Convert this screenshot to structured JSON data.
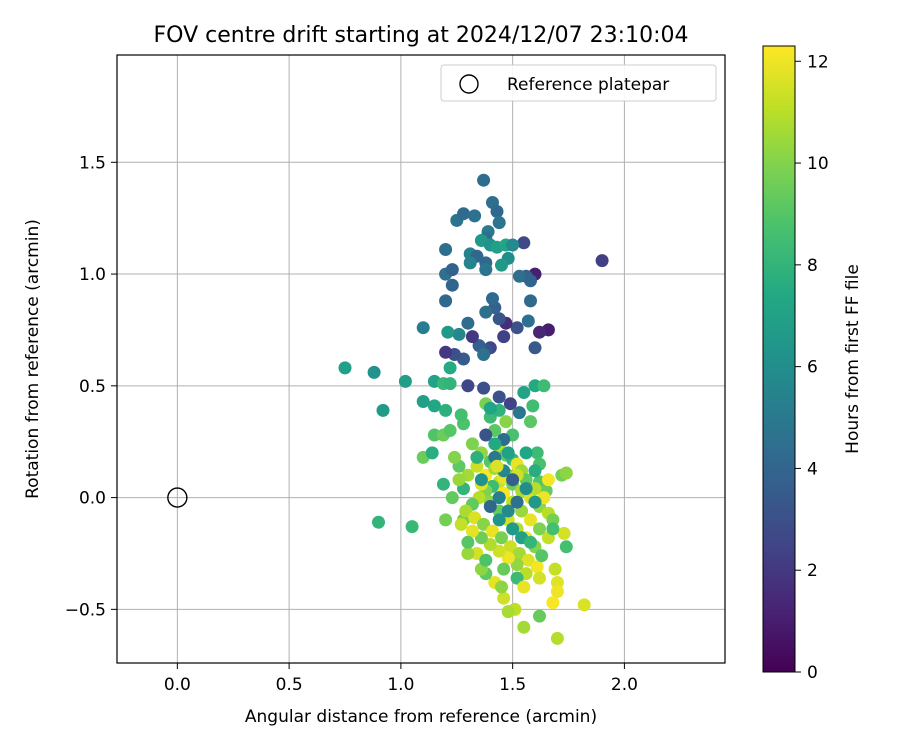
{
  "chart_data": {
    "type": "scatter",
    "title": "FOV centre drift starting at 2024/12/07 23:10:04",
    "xlabel": "Angular distance from reference (arcmin)",
    "ylabel": "Rotation from reference (arcmin)",
    "xlim": [
      -0.27,
      2.45
    ],
    "ylim": [
      -0.74,
      1.98
    ],
    "xticks": [
      0.0,
      0.5,
      1.0,
      1.5,
      2.0
    ],
    "xtick_labels": [
      "0.0",
      "0.5",
      "1.0",
      "1.5",
      "2.0"
    ],
    "yticks": [
      -0.5,
      0.0,
      0.5,
      1.0,
      1.5
    ],
    "ytick_labels": [
      "−0.5",
      "0.0",
      "0.5",
      "1.0",
      "1.5"
    ],
    "grid": true,
    "legend": {
      "placement": "top-right",
      "entries": [
        {
          "label": "Reference platepar",
          "marker": "open-circle",
          "x": 0.0,
          "y": 0.0
        }
      ]
    },
    "colorbar": {
      "label": "Hours from first FF file",
      "range": [
        0,
        12.3
      ],
      "ticks": [
        0,
        2,
        4,
        6,
        8,
        10,
        12
      ],
      "tick_labels": [
        "0",
        "2",
        "4",
        "6",
        "8",
        "10",
        "12"
      ],
      "colormap": "viridis",
      "colormap_stops": [
        "#440154",
        "#482475",
        "#414487",
        "#355f8d",
        "#2a788e",
        "#21918c",
        "#22a884",
        "#44bf70",
        "#7ad151",
        "#bddf26",
        "#fde725"
      ]
    },
    "points": [
      [
        1.9,
        1.06,
        2.3
      ],
      [
        1.66,
        0.75,
        1.0
      ],
      [
        1.62,
        0.74,
        1.3
      ],
      [
        1.6,
        1.0,
        1.1
      ],
      [
        1.55,
        1.14,
        2.7
      ],
      [
        1.6,
        0.67,
        3.4
      ],
      [
        1.58,
        0.88,
        4.3
      ],
      [
        1.56,
        0.99,
        3.9
      ],
      [
        1.53,
        0.99,
        4.5
      ],
      [
        1.58,
        0.97,
        4.0
      ],
      [
        1.57,
        0.79,
        4.6
      ],
      [
        1.52,
        0.76,
        3.1
      ],
      [
        1.47,
        0.78,
        1.6
      ],
      [
        1.46,
        0.72,
        2.4
      ],
      [
        1.44,
        0.8,
        3.3
      ],
      [
        1.42,
        0.85,
        3.8
      ],
      [
        1.41,
        0.89,
        4.2
      ],
      [
        1.38,
        0.83,
        4.5
      ],
      [
        1.4,
        0.67,
        2.6
      ],
      [
        1.38,
        0.66,
        3.2
      ],
      [
        1.35,
        0.68,
        3.7
      ],
      [
        1.37,
        0.64,
        4.6
      ],
      [
        1.32,
        0.72,
        2.0
      ],
      [
        1.3,
        0.78,
        4.4
      ],
      [
        1.28,
        0.62,
        3.5
      ],
      [
        1.24,
        0.64,
        3.0
      ],
      [
        1.2,
        0.65,
        2.0
      ],
      [
        1.2,
        0.88,
        4.2
      ],
      [
        1.23,
        0.95,
        4.0
      ],
      [
        1.2,
        1.0,
        4.6
      ],
      [
        1.23,
        1.02,
        3.9
      ],
      [
        1.2,
        1.11,
        4.5
      ],
      [
        1.25,
        1.24,
        4.7
      ],
      [
        1.28,
        1.27,
        4.3
      ],
      [
        1.33,
        1.26,
        4.6
      ],
      [
        1.37,
        1.42,
        4.4
      ],
      [
        1.41,
        1.32,
        4.5
      ],
      [
        1.43,
        1.28,
        4.2
      ],
      [
        1.44,
        1.23,
        4.8
      ],
      [
        1.39,
        1.19,
        5.0
      ],
      [
        1.38,
        1.16,
        4.4
      ],
      [
        1.36,
        1.15,
        6.6
      ],
      [
        1.31,
        1.09,
        5.4
      ],
      [
        1.34,
        1.08,
        4.1
      ],
      [
        1.38,
        1.05,
        4.2
      ],
      [
        1.4,
        1.13,
        6.2
      ],
      [
        1.43,
        1.12,
        6.9
      ],
      [
        1.47,
        1.13,
        7.2
      ],
      [
        1.5,
        1.13,
        5.8
      ],
      [
        1.48,
        1.07,
        6.0
      ],
      [
        1.45,
        1.04,
        6.6
      ],
      [
        1.38,
        1.02,
        4.8
      ],
      [
        1.31,
        1.05,
        5.4
      ],
      [
        1.26,
        0.73,
        5.7
      ],
      [
        1.21,
        0.74,
        6.6
      ],
      [
        1.1,
        0.76,
        5.2
      ],
      [
        1.3,
        0.5,
        2.6
      ],
      [
        1.37,
        0.49,
        3.0
      ],
      [
        1.44,
        0.45,
        3.1
      ],
      [
        1.49,
        0.42,
        2.5
      ],
      [
        1.53,
        0.38,
        4.8
      ],
      [
        1.55,
        0.47,
        7.1
      ],
      [
        1.6,
        0.5,
        7.4
      ],
      [
        1.64,
        0.5,
        8.4
      ],
      [
        1.59,
        0.41,
        8.5
      ],
      [
        1.58,
        0.34,
        9.1
      ],
      [
        1.61,
        0.2,
        8.4
      ],
      [
        1.62,
        0.15,
        8.7
      ],
      [
        1.62,
        0.07,
        8.9
      ],
      [
        1.65,
        0.03,
        9.4
      ],
      [
        1.72,
        0.1,
        9.7
      ],
      [
        1.74,
        0.11,
        10.2
      ],
      [
        1.73,
        -0.16,
        11.5
      ],
      [
        1.74,
        -0.22,
        8.6
      ],
      [
        1.69,
        -0.32,
        11.2
      ],
      [
        1.7,
        -0.38,
        11.7
      ],
      [
        1.7,
        -0.42,
        12.0
      ],
      [
        1.68,
        -0.47,
        12.2
      ],
      [
        1.82,
        -0.48,
        11.6
      ],
      [
        1.7,
        -0.63,
        10.9
      ],
      [
        1.62,
        -0.53,
        9.4
      ],
      [
        1.55,
        -0.58,
        10.6
      ],
      [
        1.51,
        -0.5,
        11.1
      ],
      [
        1.48,
        -0.51,
        10.7
      ],
      [
        1.46,
        -0.45,
        11.4
      ],
      [
        1.42,
        -0.38,
        11.8
      ],
      [
        1.38,
        -0.34,
        9.2
      ],
      [
        1.36,
        -0.32,
        10.2
      ],
      [
        1.34,
        -0.25,
        11.5
      ],
      [
        1.3,
        -0.25,
        10.4
      ],
      [
        1.28,
        -0.1,
        9.6
      ],
      [
        1.23,
        0.0,
        9.3
      ],
      [
        1.19,
        0.06,
        8.0
      ],
      [
        1.2,
        -0.1,
        9.7
      ],
      [
        1.1,
        0.18,
        9.5
      ],
      [
        1.14,
        0.2,
        7.7
      ],
      [
        1.15,
        0.28,
        8.9
      ],
      [
        1.19,
        0.28,
        9.5
      ],
      [
        1.22,
        0.3,
        9.0
      ],
      [
        1.28,
        0.33,
        8.8
      ],
      [
        1.27,
        0.37,
        8.6
      ],
      [
        1.2,
        0.39,
        7.8
      ],
      [
        1.15,
        0.41,
        7.3
      ],
      [
        1.1,
        0.43,
        6.9
      ],
      [
        1.15,
        0.52,
        7.1
      ],
      [
        1.19,
        0.51,
        8.2
      ],
      [
        1.22,
        0.58,
        7.5
      ],
      [
        1.22,
        0.51,
        8.0
      ],
      [
        1.05,
        -0.13,
        8.2
      ],
      [
        0.9,
        -0.11,
        8.0
      ],
      [
        1.02,
        0.52,
        6.8
      ],
      [
        0.92,
        0.39,
        6.7
      ],
      [
        0.88,
        0.56,
        6.2
      ],
      [
        0.75,
        0.58,
        6.9
      ],
      [
        1.32,
        0.24,
        9.9
      ],
      [
        1.36,
        0.2,
        10.3
      ],
      [
        1.4,
        0.16,
        9.0
      ],
      [
        1.44,
        0.22,
        10.8
      ],
      [
        1.47,
        0.19,
        9.2
      ],
      [
        1.5,
        0.17,
        8.1
      ],
      [
        1.52,
        0.15,
        11.9
      ],
      [
        1.54,
        0.12,
        10.5
      ],
      [
        1.48,
        0.1,
        9.7
      ],
      [
        1.44,
        0.07,
        11.2
      ],
      [
        1.41,
        0.05,
        8.4
      ],
      [
        1.38,
        0.03,
        9.9
      ],
      [
        1.35,
        0.0,
        11.0
      ],
      [
        1.32,
        -0.03,
        9.3
      ],
      [
        1.29,
        -0.06,
        10.7
      ],
      [
        1.33,
        -0.09,
        11.6
      ],
      [
        1.37,
        -0.12,
        10.1
      ],
      [
        1.41,
        -0.15,
        11.9
      ],
      [
        1.45,
        -0.18,
        9.8
      ],
      [
        1.49,
        -0.22,
        11.3
      ],
      [
        1.53,
        -0.25,
        10.6
      ],
      [
        1.57,
        -0.28,
        11.7
      ],
      [
        1.61,
        -0.31,
        12.1
      ],
      [
        1.56,
        -0.34,
        11.0
      ],
      [
        1.52,
        -0.3,
        10.3
      ],
      [
        1.48,
        -0.27,
        12.0
      ],
      [
        1.44,
        -0.24,
        11.4
      ],
      [
        1.4,
        -0.21,
        10.8
      ],
      [
        1.36,
        -0.18,
        9.6
      ],
      [
        1.32,
        -0.15,
        11.8
      ],
      [
        1.46,
        0.02,
        12.2
      ],
      [
        1.5,
        -0.02,
        11.1
      ],
      [
        1.54,
        -0.06,
        10.4
      ],
      [
        1.58,
        -0.1,
        11.9
      ],
      [
        1.62,
        -0.14,
        9.9
      ],
      [
        1.66,
        -0.18,
        11.2
      ],
      [
        1.6,
        -0.22,
        10.0
      ],
      [
        1.56,
        -0.18,
        12.1
      ],
      [
        1.52,
        -0.14,
        10.9
      ],
      [
        1.48,
        -0.1,
        11.5
      ],
      [
        1.44,
        -0.06,
        9.4
      ],
      [
        1.4,
        -0.02,
        10.2
      ],
      [
        1.36,
        0.06,
        11.7
      ],
      [
        1.3,
        0.1,
        10.6
      ],
      [
        1.26,
        0.14,
        9.2
      ],
      [
        1.24,
        0.18,
        10.0
      ],
      [
        1.34,
        0.14,
        11.3
      ],
      [
        1.38,
        0.1,
        12.2
      ],
      [
        1.42,
        0.13,
        10.5
      ],
      [
        1.46,
        0.09,
        11.8
      ],
      [
        1.5,
        0.06,
        9.5
      ],
      [
        1.54,
        0.03,
        10.8
      ],
      [
        1.58,
        0.0,
        11.6
      ],
      [
        1.62,
        -0.04,
        10.3
      ],
      [
        1.66,
        -0.07,
        11.0
      ],
      [
        1.68,
        -0.1,
        9.7
      ],
      [
        1.64,
        0.0,
        12.0
      ],
      [
        1.6,
        0.04,
        10.9
      ],
      [
        1.56,
        0.08,
        9.3
      ],
      [
        1.52,
        0.1,
        11.4
      ],
      [
        1.42,
        0.3,
        9.1
      ],
      [
        1.4,
        0.36,
        8.4
      ],
      [
        1.38,
        0.42,
        9.8
      ],
      [
        1.44,
        0.39,
        7.9
      ],
      [
        1.47,
        0.34,
        10.1
      ],
      [
        1.5,
        0.28,
        8.7
      ],
      [
        1.46,
        0.26,
        4.4
      ],
      [
        1.38,
        0.28,
        3.2
      ],
      [
        1.42,
        0.18,
        5.0
      ],
      [
        1.46,
        0.12,
        5.6
      ],
      [
        1.5,
        0.08,
        3.7
      ],
      [
        1.44,
        0.0,
        5.3
      ],
      [
        1.4,
        -0.04,
        4.1
      ],
      [
        1.48,
        -0.06,
        5.8
      ],
      [
        1.52,
        -0.02,
        4.6
      ],
      [
        1.56,
        0.04,
        6.0
      ],
      [
        1.44,
        -0.1,
        6.3
      ],
      [
        1.5,
        -0.14,
        6.7
      ],
      [
        1.54,
        -0.18,
        7.0
      ],
      [
        1.6,
        -0.02,
        6.5
      ],
      [
        1.36,
        0.08,
        6.2
      ],
      [
        1.42,
        0.24,
        7.4
      ],
      [
        1.48,
        0.2,
        7.0
      ],
      [
        1.34,
        0.18,
        7.8
      ],
      [
        1.28,
        0.04,
        8.0
      ],
      [
        1.3,
        -0.2,
        9.0
      ],
      [
        1.38,
        -0.28,
        8.8
      ],
      [
        1.46,
        -0.32,
        9.4
      ],
      [
        1.52,
        -0.36,
        8.3
      ],
      [
        1.58,
        -0.2,
        8.1
      ],
      [
        1.63,
        -0.26,
        9.0
      ],
      [
        1.68,
        -0.14,
        8.6
      ],
      [
        1.6,
        0.12,
        7.6
      ],
      [
        1.56,
        0.2,
        7.3
      ],
      [
        1.4,
        0.4,
        7.2
      ],
      [
        1.26,
        0.08,
        10.4
      ],
      [
        1.27,
        -0.12,
        11.2
      ],
      [
        1.45,
        -0.4,
        10.2
      ],
      [
        1.55,
        -0.4,
        11.9
      ],
      [
        1.62,
        -0.36,
        11.5
      ],
      [
        1.66,
        0.08,
        12.1
      ],
      [
        1.43,
        0.14,
        11.6
      ]
    ]
  }
}
